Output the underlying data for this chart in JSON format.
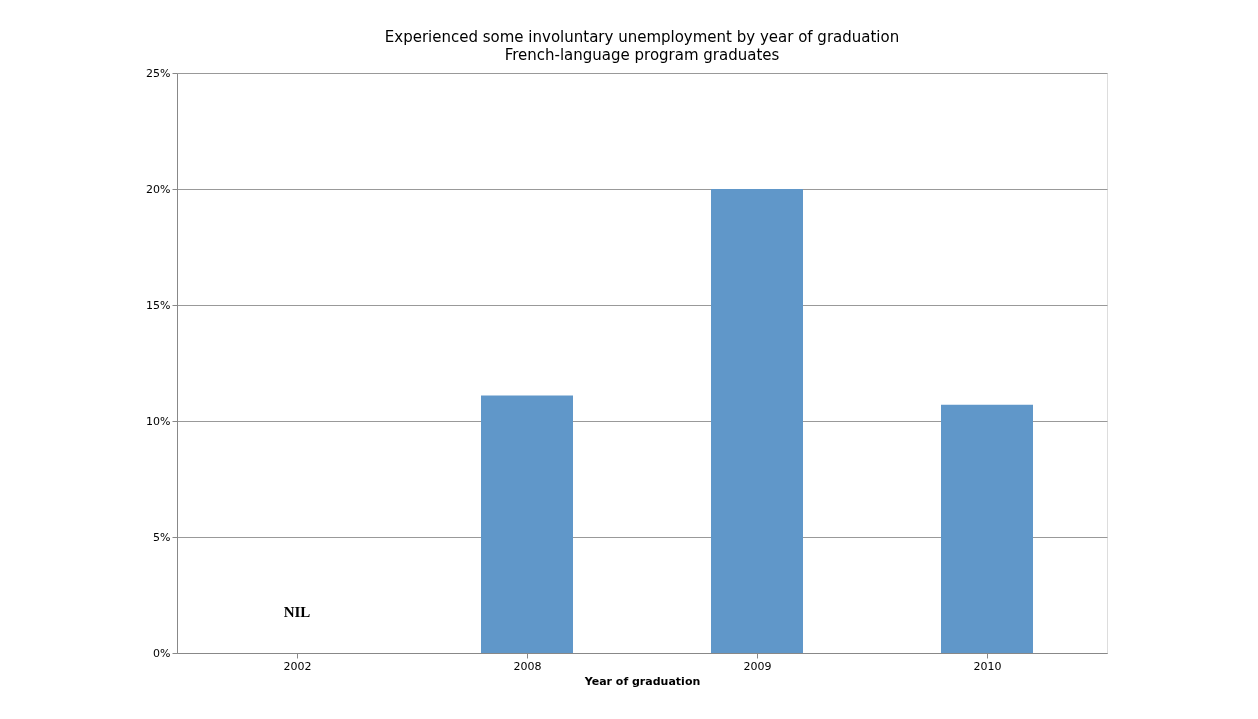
{
  "chart_data": {
    "type": "bar",
    "title": "Experienced some involuntary unemployment by year of graduation",
    "subtitle": "French-language program graduates",
    "xlabel": "Year of graduation",
    "categories": [
      "2002",
      "2008",
      "2009",
      "2010"
    ],
    "values": [
      null,
      11.1,
      20.0,
      10.7
    ],
    "color": "#6097c9",
    "ylim": [
      0,
      25
    ],
    "yticks": [
      {
        "value": 0,
        "label": "0%"
      },
      {
        "value": 5,
        "label": "5%"
      },
      {
        "value": 10,
        "label": "10%"
      },
      {
        "value": 15,
        "label": "15%"
      },
      {
        "value": 20,
        "label": "20%"
      },
      {
        "value": 25,
        "label": "25%"
      }
    ],
    "grid": "y",
    "annotations": [
      "NIL"
    ]
  }
}
